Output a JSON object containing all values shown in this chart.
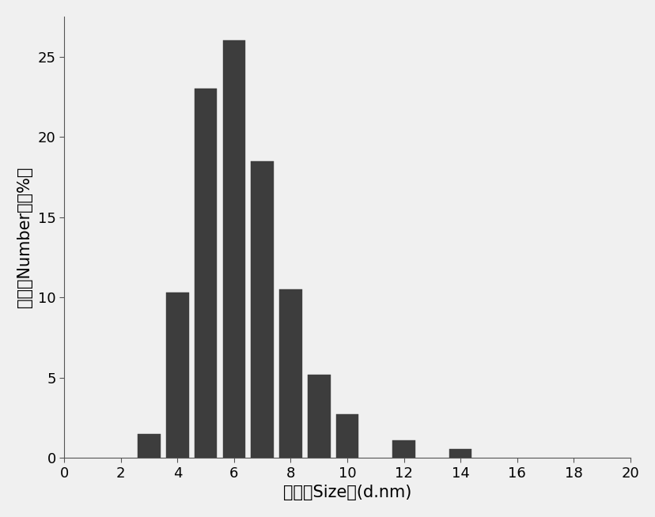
{
  "bar_lefts": [
    2.6,
    3.6,
    4.6,
    5.6,
    6.6,
    7.6,
    8.6,
    9.6,
    11.6,
    13.6
  ],
  "bar_heights": [
    1.5,
    10.3,
    23.0,
    26.0,
    18.5,
    10.5,
    5.2,
    2.7,
    1.1,
    0.55
  ],
  "bar_width": 0.8,
  "bar_color": "#3d3d3d",
  "bar_edgecolor": "#3d3d3d",
  "xlim": [
    0,
    20
  ],
  "ylim": [
    0,
    27.5
  ],
  "xticks": [
    0,
    2,
    4,
    6,
    8,
    10,
    12,
    14,
    16,
    18,
    20
  ],
  "yticks": [
    0,
    5,
    10,
    15,
    20,
    25
  ],
  "xlabel": "尺寸（Size）(d.nm)",
  "ylabel": "数目（Number）（%）",
  "background_color": "#f0f0f0",
  "plot_background_color": "#f0f0f0",
  "xlabel_fontsize": 15,
  "ylabel_fontsize": 15,
  "tick_fontsize": 13
}
